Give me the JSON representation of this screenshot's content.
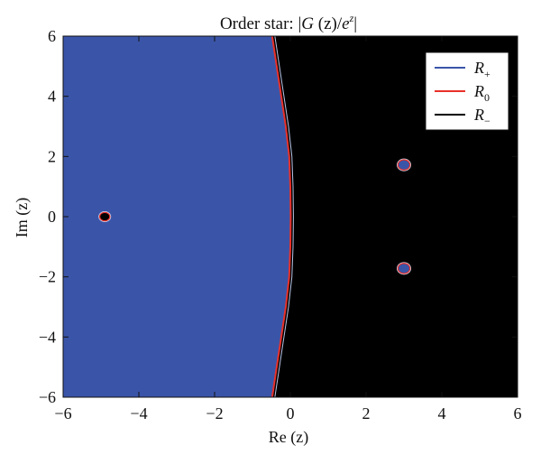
{
  "chart_data": {
    "type": "contour",
    "title_parts": {
      "prefix": "Order star: |",
      "g": "G",
      "z_arg": " (z)/",
      "e": "e",
      "sup": "z",
      "suffix": "|"
    },
    "xlabel": "Re (z)",
    "ylabel": "Im (z)",
    "xlim": [
      -6,
      6
    ],
    "ylim": [
      -6,
      6
    ],
    "xticks": [
      -6,
      -4,
      -2,
      0,
      2,
      4,
      6
    ],
    "yticks": [
      -6,
      -4,
      -2,
      0,
      2,
      4,
      6
    ],
    "grid": false,
    "legend_position": "top-right",
    "regions": {
      "R_plus_color": "#3a55a8",
      "R_minus_color": "#000000",
      "R_zero_color": "#e8312a"
    },
    "legend": [
      {
        "base": "R",
        "sub": "+",
        "color": "#3a55a8"
      },
      {
        "base": "R",
        "sub": "0",
        "color": "#e8312a"
      },
      {
        "base": "R",
        "sub": "−",
        "color": "#000000"
      }
    ],
    "boundary_curve": [
      {
        "y": 6.0,
        "x": -0.48
      },
      {
        "y": 5.0,
        "x": -0.36
      },
      {
        "y": 4.0,
        "x": -0.24
      },
      {
        "y": 3.0,
        "x": -0.12
      },
      {
        "y": 2.0,
        "x": -0.03
      },
      {
        "y": 1.0,
        "x": 0.0
      },
      {
        "y": 0.0,
        "x": 0.01
      },
      {
        "y": -1.0,
        "x": 0.0
      },
      {
        "y": -2.0,
        "x": -0.03
      },
      {
        "y": -3.0,
        "x": -0.12
      },
      {
        "y": -4.0,
        "x": -0.24
      },
      {
        "y": -5.0,
        "x": -0.36
      },
      {
        "y": -6.0,
        "x": -0.48
      }
    ],
    "islands": [
      {
        "x": -4.9,
        "y": 0.0,
        "region": "R_minus"
      },
      {
        "x": 3.0,
        "y": 1.72,
        "region": "R_plus"
      },
      {
        "x": 3.0,
        "y": -1.72,
        "region": "R_plus"
      }
    ]
  }
}
